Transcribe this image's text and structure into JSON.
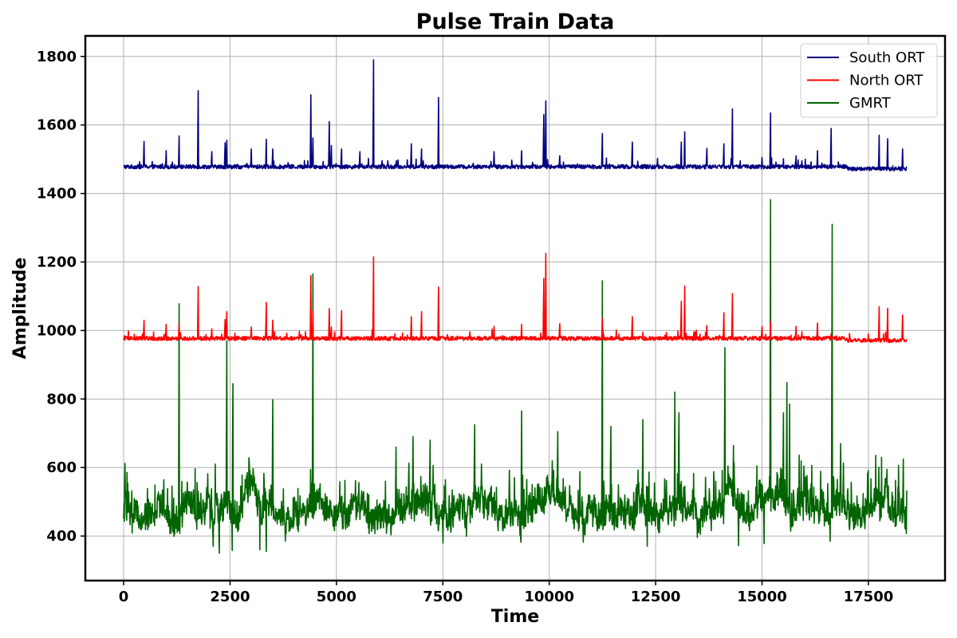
{
  "chart_data": {
    "type": "line",
    "title": "Pulse Train Data",
    "xlabel": "Time",
    "ylabel": "Amplitude",
    "xlim": [
      -900,
      19300
    ],
    "ylim": [
      270,
      1860
    ],
    "xticks": [
      0,
      2500,
      5000,
      7500,
      10000,
      12500,
      15000,
      17500
    ],
    "xtick_labels": [
      "0",
      "2500",
      "5000",
      "7500",
      "10000",
      "12500",
      "15000",
      "17500"
    ],
    "yticks": [
      400,
      600,
      800,
      1000,
      1200,
      1400,
      1600,
      1800
    ],
    "ytick_labels": [
      "400",
      "600",
      "800",
      "1000",
      "1200",
      "1400",
      "1600",
      "1800"
    ],
    "grid": true,
    "legend_position": "top-right",
    "x_range": [
      0,
      18400
    ],
    "series": [
      {
        "name": "South ORT",
        "color": "#000080",
        "baseline": 1478,
        "noise": 6,
        "spikes": [
          [
            480,
            1552
          ],
          [
            1000,
            1525
          ],
          [
            1300,
            1568
          ],
          [
            1750,
            1700
          ],
          [
            2070,
            1522
          ],
          [
            2380,
            1548
          ],
          [
            2420,
            1555
          ],
          [
            3000,
            1530
          ],
          [
            3350,
            1558
          ],
          [
            3500,
            1530
          ],
          [
            4400,
            1688
          ],
          [
            4450,
            1562
          ],
          [
            4830,
            1610
          ],
          [
            4880,
            1540
          ],
          [
            5120,
            1530
          ],
          [
            5550,
            1522
          ],
          [
            5870,
            1790
          ],
          [
            6760,
            1545
          ],
          [
            7000,
            1530
          ],
          [
            7400,
            1680
          ],
          [
            8700,
            1522
          ],
          [
            9350,
            1525
          ],
          [
            9870,
            1630
          ],
          [
            9920,
            1670
          ],
          [
            10250,
            1510
          ],
          [
            11250,
            1575
          ],
          [
            11950,
            1550
          ],
          [
            13100,
            1550
          ],
          [
            13180,
            1580
          ],
          [
            13700,
            1532
          ],
          [
            14100,
            1545
          ],
          [
            14300,
            1647
          ],
          [
            15000,
            1505
          ],
          [
            15200,
            1635
          ],
          [
            15800,
            1510
          ],
          [
            16300,
            1525
          ],
          [
            16620,
            1590
          ],
          [
            17750,
            1570
          ],
          [
            17950,
            1560
          ],
          [
            18300,
            1530
          ]
        ]
      },
      {
        "name": "North ORT",
        "color": "#ff0000",
        "baseline": 977,
        "noise": 6,
        "spikes": [
          [
            480,
            1030
          ],
          [
            1000,
            1018
          ],
          [
            1300,
            1020
          ],
          [
            1750,
            1128
          ],
          [
            2070,
            1005
          ],
          [
            2380,
            1032
          ],
          [
            2420,
            1055
          ],
          [
            3000,
            1010
          ],
          [
            3350,
            1082
          ],
          [
            3500,
            1030
          ],
          [
            4400,
            1160
          ],
          [
            4450,
            1058
          ],
          [
            4830,
            1064
          ],
          [
            4880,
            1010
          ],
          [
            5120,
            1058
          ],
          [
            5870,
            1215
          ],
          [
            6760,
            1040
          ],
          [
            7000,
            1055
          ],
          [
            7400,
            1127
          ],
          [
            8700,
            1012
          ],
          [
            9350,
            1018
          ],
          [
            9870,
            1152
          ],
          [
            9920,
            1225
          ],
          [
            10250,
            1020
          ],
          [
            11250,
            1035
          ],
          [
            11950,
            1040
          ],
          [
            13100,
            1085
          ],
          [
            13180,
            1130
          ],
          [
            13700,
            1015
          ],
          [
            14100,
            1052
          ],
          [
            14300,
            1108
          ],
          [
            15000,
            1012
          ],
          [
            15200,
            1025
          ],
          [
            15800,
            1012
          ],
          [
            16300,
            1022
          ],
          [
            16620,
            990
          ],
          [
            17750,
            1070
          ],
          [
            17950,
            1065
          ],
          [
            18300,
            1045
          ]
        ]
      },
      {
        "name": "GMRT",
        "color": "#006400",
        "baseline": 475,
        "noise": 40,
        "spikes": [
          [
            30,
            612
          ],
          [
            1300,
            1078
          ],
          [
            2420,
            970
          ],
          [
            2570,
            845
          ],
          [
            3200,
            745
          ],
          [
            3500,
            798
          ],
          [
            4450,
            1165
          ],
          [
            6400,
            660
          ],
          [
            6800,
            690
          ],
          [
            7200,
            680
          ],
          [
            8250,
            725
          ],
          [
            9350,
            765
          ],
          [
            10200,
            705
          ],
          [
            11250,
            1145
          ],
          [
            11450,
            720
          ],
          [
            12200,
            740
          ],
          [
            12950,
            820
          ],
          [
            13050,
            760
          ],
          [
            14130,
            950
          ],
          [
            15200,
            1382
          ],
          [
            15500,
            760
          ],
          [
            15580,
            848
          ],
          [
            15650,
            785
          ],
          [
            16650,
            1310
          ],
          [
            16850,
            670
          ],
          [
            18320,
            625
          ]
        ],
        "dips": [
          [
            2100,
            370
          ],
          [
            2250,
            350
          ],
          [
            2550,
            358
          ],
          [
            3200,
            360
          ],
          [
            3350,
            355
          ],
          [
            3800,
            385
          ],
          [
            7500,
            380
          ],
          [
            10800,
            382
          ],
          [
            12300,
            370
          ],
          [
            14450,
            372
          ],
          [
            15050,
            378
          ],
          [
            16600,
            385
          ]
        ],
        "bursts": [
          [
            2900,
            600
          ],
          [
            3050,
            620
          ],
          [
            6900,
            580
          ],
          [
            8300,
            560
          ],
          [
            10100,
            580
          ],
          [
            11300,
            560
          ],
          [
            13100,
            620
          ],
          [
            14200,
            600
          ],
          [
            15500,
            620
          ],
          [
            17700,
            530
          ],
          [
            18000,
            540
          ]
        ]
      }
    ]
  }
}
